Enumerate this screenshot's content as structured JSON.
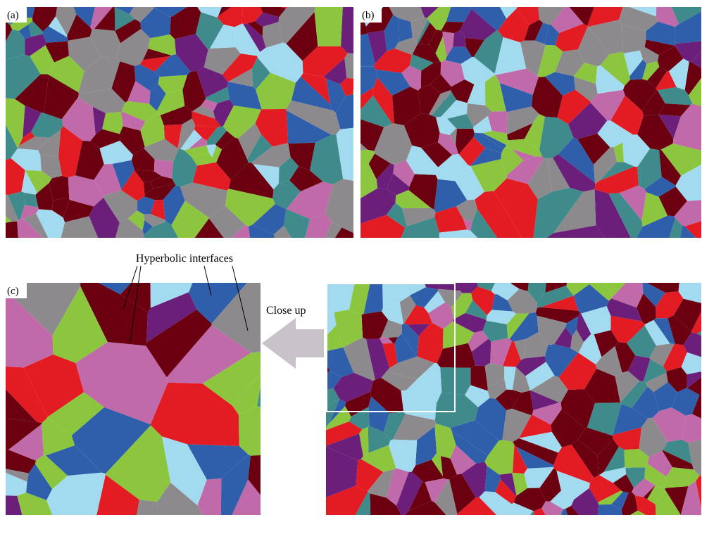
{
  "panels": [
    {
      "label": "(a)"
    },
    {
      "label": "(b)"
    },
    {
      "label": "(c)"
    }
  ],
  "annotations": {
    "interfaces": "Hyperbolic interfaces",
    "close_up": "Close up"
  }
}
